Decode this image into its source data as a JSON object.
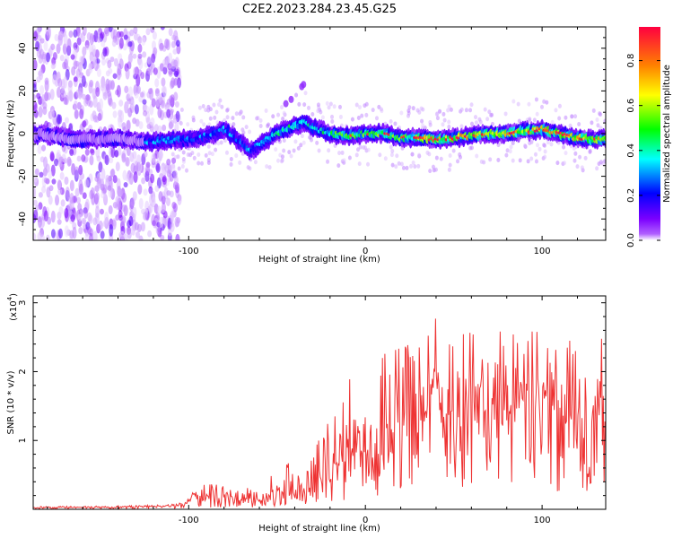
{
  "figure": {
    "title": "C2E2.2023.284.23.45.G25"
  },
  "chart_data": [
    {
      "type": "heatmap",
      "panel": "spectrogram",
      "xlabel": "Height of straight line (km)",
      "ylabel": "Frequency (Hz)",
      "xlim": [
        -188,
        136
      ],
      "ylim": [
        -50,
        50
      ],
      "xticks": [
        -100,
        0,
        100
      ],
      "xtick_labels": [
        "-100",
        "0",
        "100"
      ],
      "yticks": [
        -40,
        -20,
        0,
        20,
        40
      ],
      "ytick_labels": [
        "-40",
        "-20",
        "0",
        "20",
        "40"
      ],
      "grid": false,
      "colorbar": {
        "label": "Normalized spectral amplitude",
        "range": [
          0,
          0.95
        ],
        "ticks": [
          0.0,
          0.2,
          0.4,
          0.6,
          0.8
        ],
        "tick_labels": [
          "0.0",
          "0.2",
          "0.4",
          "0.6",
          "0.8"
        ],
        "colormap": [
          "#ffffff",
          "#7b00ff",
          "#0000ff",
          "#00ffff",
          "#00ff00",
          "#ffff00",
          "#ff8000",
          "#ff0040"
        ]
      },
      "ridge": {
        "description_points": [
          [
            -188,
            0
          ],
          [
            -160,
            -3
          ],
          [
            -140,
            -2
          ],
          [
            -125,
            -4
          ],
          [
            -110,
            -3
          ],
          [
            -95,
            -2
          ],
          [
            -85,
            0
          ],
          [
            -80,
            2
          ],
          [
            -72,
            -3
          ],
          [
            -65,
            -8
          ],
          [
            -58,
            -4
          ],
          [
            -50,
            0
          ],
          [
            -42,
            3
          ],
          [
            -35,
            5
          ],
          [
            -30,
            3
          ],
          [
            -20,
            0
          ],
          [
            -10,
            -1
          ],
          [
            0,
            0
          ],
          [
            10,
            0
          ],
          [
            20,
            -2
          ],
          [
            30,
            -2
          ],
          [
            40,
            -3
          ],
          [
            50,
            -2
          ],
          [
            60,
            -1
          ],
          [
            70,
            0
          ],
          [
            80,
            0
          ],
          [
            90,
            1
          ],
          [
            100,
            2
          ],
          [
            110,
            0
          ],
          [
            120,
            -2
          ],
          [
            130,
            -3
          ],
          [
            136,
            -2
          ]
        ],
        "noise_region": [
          -188,
          -110
        ]
      }
    },
    {
      "type": "line",
      "panel": "snr",
      "xlabel": "Height of straight line (km)",
      "ylabel": "SNR (10 * v/v)",
      "multiplier_label": "(x10",
      "multiplier_exp": "4",
      "xlim": [
        -188,
        136
      ],
      "ylim": [
        0,
        3.1
      ],
      "xticks": [
        -100,
        0,
        100
      ],
      "xtick_labels": [
        "-100",
        "0",
        "100"
      ],
      "yticks": [
        1,
        2,
        3
      ],
      "ytick_labels": [
        "1",
        "2",
        "3"
      ],
      "grid": false,
      "series": [
        {
          "color": "#ee3333",
          "envelope": {
            "x": [
              -188,
              -150,
              -120,
              -105,
              -100,
              -90,
              -80,
              -70,
              -60,
              -50,
              -40,
              -30,
              -20,
              -10,
              0,
              10,
              20,
              30,
              40,
              50,
              60,
              70,
              80,
              90,
              100,
              110,
              120,
              130,
              136
            ],
            "mean": [
              0.02,
              0.03,
              0.04,
              0.06,
              0.1,
              0.14,
              0.14,
              0.13,
              0.14,
              0.2,
              0.26,
              0.3,
              0.55,
              0.7,
              0.8,
              1.0,
              1.1,
              1.2,
              1.3,
              1.3,
              1.4,
              1.3,
              1.4,
              1.3,
              1.4,
              1.3,
              1.3,
              1.35,
              1.3
            ],
            "peak": [
              0.04,
              0.05,
              0.06,
              0.1,
              0.2,
              0.4,
              0.35,
              0.3,
              0.35,
              0.55,
              0.75,
              0.8,
              1.4,
              1.9,
              2.1,
              2.3,
              2.4,
              2.5,
              2.8,
              2.4,
              2.75,
              2.8,
              2.6,
              2.5,
              2.7,
              2.6,
              2.5,
              2.6,
              3.05
            ]
          }
        }
      ]
    }
  ]
}
